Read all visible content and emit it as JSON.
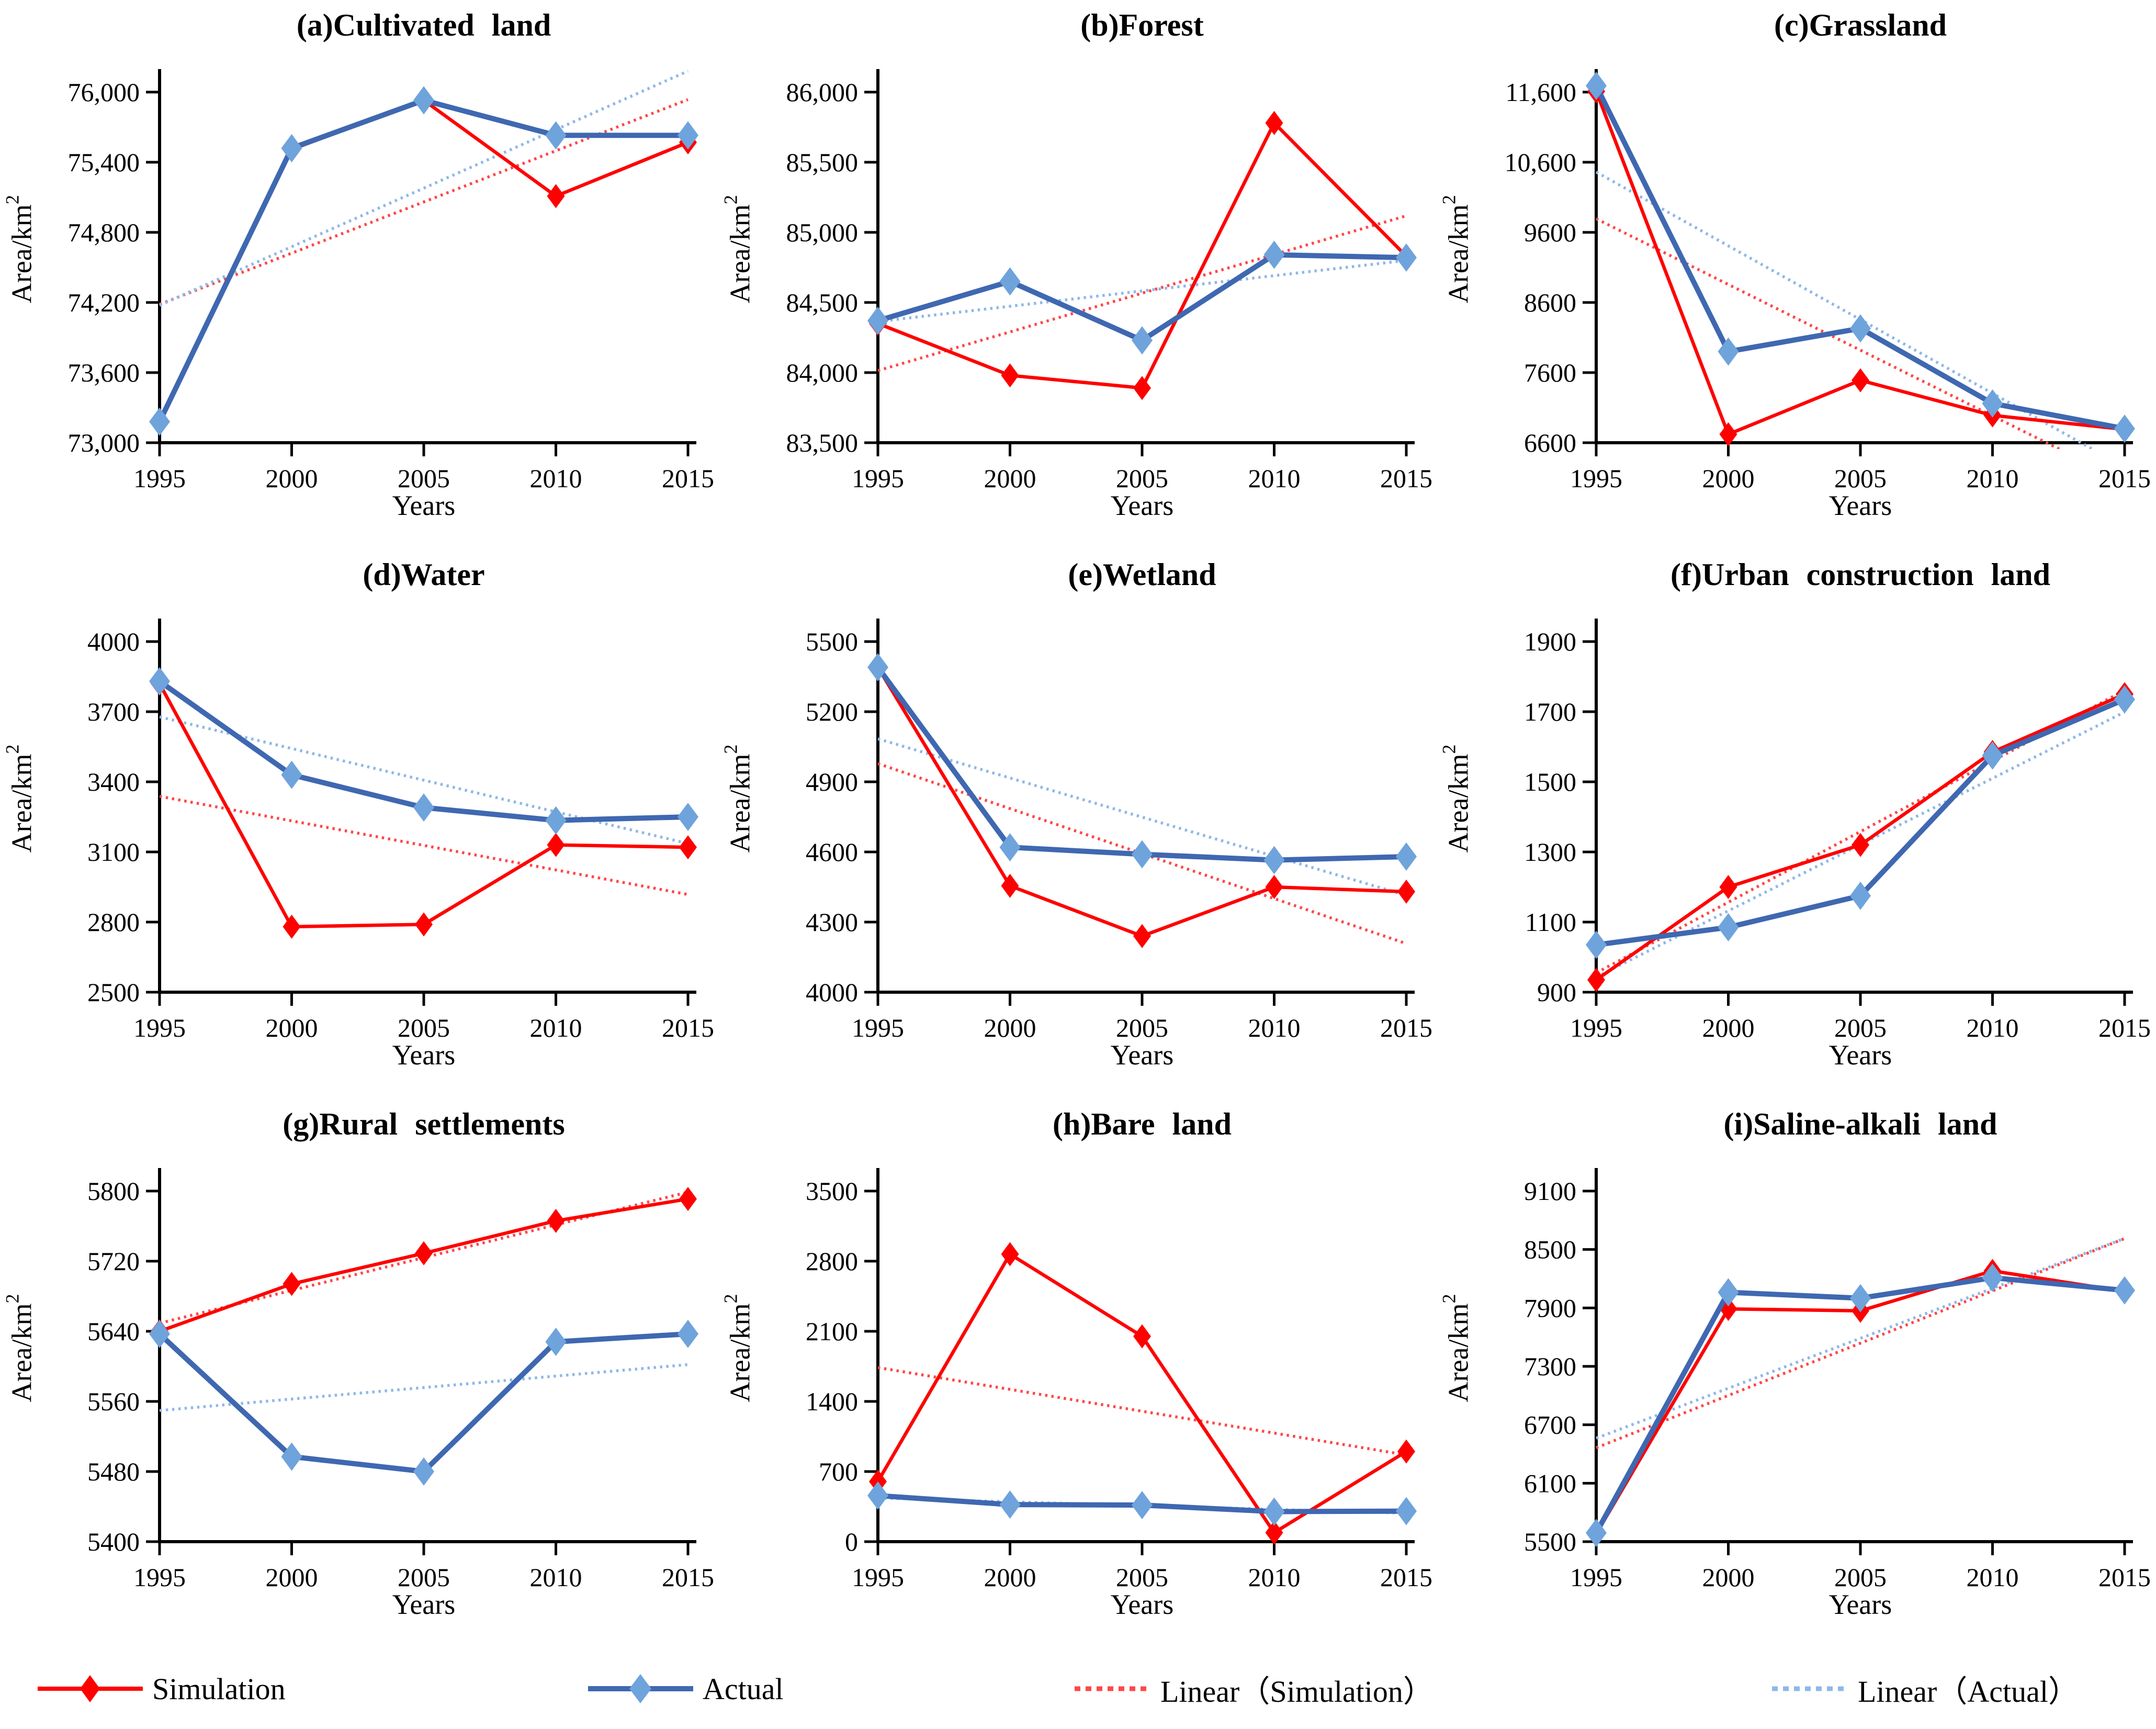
{
  "figure": {
    "background": "#FFFFFF",
    "x_axis_title": "Years",
    "y_axis_title_base": "Area/km",
    "y_axis_title_sup": "2"
  },
  "colors": {
    "simulation": "#FF0000",
    "actual_line": "#3F68B1",
    "actual_marker": "#6FA3DC",
    "linear_simulation": "#FF4747",
    "linear_actual": "#8FB8E8",
    "axis": "#000000"
  },
  "legend": {
    "items": [
      {
        "label": "Simulation",
        "line": "solid",
        "marker": "diamond",
        "color_key": "simulation"
      },
      {
        "label": "Actual",
        "line": "solid",
        "marker": "diamond",
        "color_key": "actual"
      },
      {
        "label": "Linear（Simulation）",
        "line": "dashed",
        "marker": "none",
        "color_key": "linear_simulation"
      },
      {
        "label": "Linear（Actual）",
        "line": "dashed",
        "marker": "none",
        "color_key": "linear_actual"
      }
    ]
  },
  "chart_data": [
    {
      "type": "line",
      "panel": "a",
      "title": "(a)Cultivated land",
      "xlabel": "Years",
      "ylabel": "Area/km2",
      "ylabel_base": "Area/km",
      "ylabel_sup": "2",
      "x": [
        1995,
        2000,
        2005,
        2010,
        2015
      ],
      "ylim": [
        73000,
        76000
      ],
      "yticks": [
        73000,
        73600,
        74200,
        74800,
        75400,
        76000
      ],
      "grid": false,
      "legend_position": "none",
      "series": [
        {
          "name": "Simulation",
          "values": [
            73180,
            75510,
            75930,
            75110,
            75570
          ]
        },
        {
          "name": "Actual",
          "values": [
            73180,
            75520,
            75930,
            75630,
            75630
          ]
        }
      ],
      "trendlines": [
        {
          "name": "Linear（Simulation）",
          "of": "Simulation"
        },
        {
          "name": "Linear（Actual）",
          "of": "Actual"
        }
      ]
    },
    {
      "type": "line",
      "panel": "b",
      "title": "(b)Forest",
      "xlabel": "Years",
      "ylabel": "Area/km2",
      "ylabel_base": "Area/km",
      "ylabel_sup": "2",
      "x": [
        1995,
        2000,
        2005,
        2010,
        2015
      ],
      "ylim": [
        83500,
        86000
      ],
      "yticks": [
        83500,
        84000,
        84500,
        85000,
        85500,
        86000
      ],
      "grid": false,
      "legend_position": "none",
      "series": [
        {
          "name": "Simulation",
          "values": [
            84350,
            83980,
            83890,
            85780,
            84830
          ]
        },
        {
          "name": "Actual",
          "values": [
            84370,
            84650,
            84230,
            84840,
            84820
          ]
        }
      ],
      "trendlines": [
        {
          "name": "Linear（Simulation）",
          "of": "Simulation"
        },
        {
          "name": "Linear（Actual）",
          "of": "Actual"
        }
      ]
    },
    {
      "type": "line",
      "panel": "c",
      "title": "(c)Grassland",
      "xlabel": "Years",
      "ylabel": "Area/km2",
      "ylabel_base": "Area/km",
      "ylabel_sup": "2",
      "x": [
        1995,
        2000,
        2005,
        2010,
        2015
      ],
      "ylim": [
        6600,
        11600
      ],
      "yticks": [
        6600,
        7600,
        8600,
        9600,
        10600,
        11600
      ],
      "grid": false,
      "legend_position": "none",
      "series": [
        {
          "name": "Simulation",
          "values": [
            11610,
            6720,
            7490,
            6990,
            6790
          ]
        },
        {
          "name": "Actual",
          "values": [
            11690,
            7900,
            8230,
            7160,
            6800
          ]
        }
      ],
      "trendlines": [
        {
          "name": "Linear（Simulation）",
          "of": "Simulation"
        },
        {
          "name": "Linear（Actual）",
          "of": "Actual"
        }
      ]
    },
    {
      "type": "line",
      "panel": "d",
      "title": "(d)Water",
      "xlabel": "Years",
      "ylabel": "Area/km2",
      "ylabel_base": "Area/km",
      "ylabel_sup": "2",
      "x": [
        1995,
        2000,
        2005,
        2010,
        2015
      ],
      "ylim": [
        2500,
        4000
      ],
      "yticks": [
        2500,
        2800,
        3100,
        3400,
        3700,
        4000
      ],
      "grid": false,
      "legend_position": "none",
      "series": [
        {
          "name": "Simulation",
          "values": [
            3820,
            2780,
            2790,
            3130,
            3120
          ]
        },
        {
          "name": "Actual",
          "values": [
            3830,
            3430,
            3290,
            3235,
            3250
          ]
        }
      ],
      "trendlines": [
        {
          "name": "Linear（Simulation）",
          "of": "Simulation"
        },
        {
          "name": "Linear（Actual）",
          "of": "Actual"
        }
      ]
    },
    {
      "type": "line",
      "panel": "e",
      "title": "(e)Wetland",
      "xlabel": "Years",
      "ylabel": "Area/km2",
      "ylabel_base": "Area/km",
      "ylabel_sup": "2",
      "x": [
        1995,
        2000,
        2005,
        2010,
        2015
      ],
      "ylim": [
        4000,
        5500
      ],
      "yticks": [
        4000,
        4300,
        4600,
        4900,
        5200,
        5500
      ],
      "grid": false,
      "legend_position": "none",
      "series": [
        {
          "name": "Simulation",
          "values": [
            5390,
            4455,
            4240,
            4450,
            4430
          ]
        },
        {
          "name": "Actual",
          "values": [
            5390,
            4620,
            4590,
            4565,
            4580
          ]
        }
      ],
      "trendlines": [
        {
          "name": "Linear（Simulation）",
          "of": "Simulation"
        },
        {
          "name": "Linear（Actual）",
          "of": "Actual"
        }
      ]
    },
    {
      "type": "line",
      "panel": "f",
      "title": "(f)Urban construction land",
      "xlabel": "Years",
      "ylabel": "Area/km2",
      "ylabel_base": "Area/km",
      "ylabel_sup": "2",
      "x": [
        1995,
        2000,
        2005,
        2010,
        2015
      ],
      "ylim": [
        900,
        1900
      ],
      "yticks": [
        900,
        1100,
        1300,
        1500,
        1700,
        1900
      ],
      "grid": false,
      "legend_position": "none",
      "series": [
        {
          "name": "Simulation",
          "values": [
            935,
            1200,
            1320,
            1585,
            1750
          ]
        },
        {
          "name": "Actual",
          "values": [
            1035,
            1085,
            1175,
            1575,
            1735
          ]
        }
      ],
      "trendlines": [
        {
          "name": "Linear（Simulation）",
          "of": "Simulation"
        },
        {
          "name": "Linear（Actual）",
          "of": "Actual"
        }
      ]
    },
    {
      "type": "line",
      "panel": "g",
      "title": "(g)Rural settlements",
      "xlabel": "Years",
      "ylabel": "Area/km2",
      "ylabel_base": "Area/km",
      "ylabel_sup": "2",
      "x": [
        1995,
        2000,
        2005,
        2010,
        2015
      ],
      "ylim": [
        5400,
        5800
      ],
      "yticks": [
        5400,
        5480,
        5560,
        5640,
        5720,
        5800
      ],
      "grid": false,
      "legend_position": "none",
      "series": [
        {
          "name": "Simulation",
          "values": [
            5640,
            5694,
            5729,
            5766,
            5791
          ]
        },
        {
          "name": "Actual",
          "values": [
            5637,
            5497,
            5480,
            5628,
            5637
          ]
        }
      ],
      "trendlines": [
        {
          "name": "Linear（Simulation）",
          "of": "Simulation"
        },
        {
          "name": "Linear（Actual）",
          "of": "Actual"
        }
      ]
    },
    {
      "type": "line",
      "panel": "h",
      "title": "(h)Bare land",
      "xlabel": "Years",
      "ylabel": "Area/km2",
      "ylabel_base": "Area/km",
      "ylabel_sup": "2",
      "x": [
        1995,
        2000,
        2005,
        2010,
        2015
      ],
      "ylim": [
        0,
        3500
      ],
      "yticks": [
        0,
        700,
        1400,
        2100,
        2800,
        3500
      ],
      "grid": false,
      "legend_position": "none",
      "series": [
        {
          "name": "Simulation",
          "values": [
            600,
            2870,
            2050,
            90,
            900
          ]
        },
        {
          "name": "Actual",
          "values": [
            460,
            370,
            365,
            300,
            305
          ]
        }
      ],
      "trendlines": [
        {
          "name": "Linear（Simulation）",
          "of": "Simulation"
        },
        {
          "name": "Linear（Actual）",
          "of": "Actual"
        }
      ]
    },
    {
      "type": "line",
      "panel": "i",
      "title": "(i)Saline-alkali land",
      "xlabel": "Years",
      "ylabel": "Area/km2",
      "ylabel_base": "Area/km",
      "ylabel_sup": "2",
      "x": [
        1995,
        2000,
        2005,
        2010,
        2015
      ],
      "ylim": [
        5500,
        9100
      ],
      "yticks": [
        5500,
        6100,
        6700,
        7300,
        7900,
        8500,
        9100
      ],
      "grid": false,
      "legend_position": "none",
      "series": [
        {
          "name": "Simulation",
          "values": [
            5580,
            7890,
            7870,
            8280,
            8070
          ]
        },
        {
          "name": "Actual",
          "values": [
            5590,
            8060,
            8000,
            8210,
            8080
          ]
        }
      ],
      "trendlines": [
        {
          "name": "Linear（Simulation）",
          "of": "Simulation"
        },
        {
          "name": "Linear（Actual）",
          "of": "Actual"
        }
      ]
    }
  ]
}
